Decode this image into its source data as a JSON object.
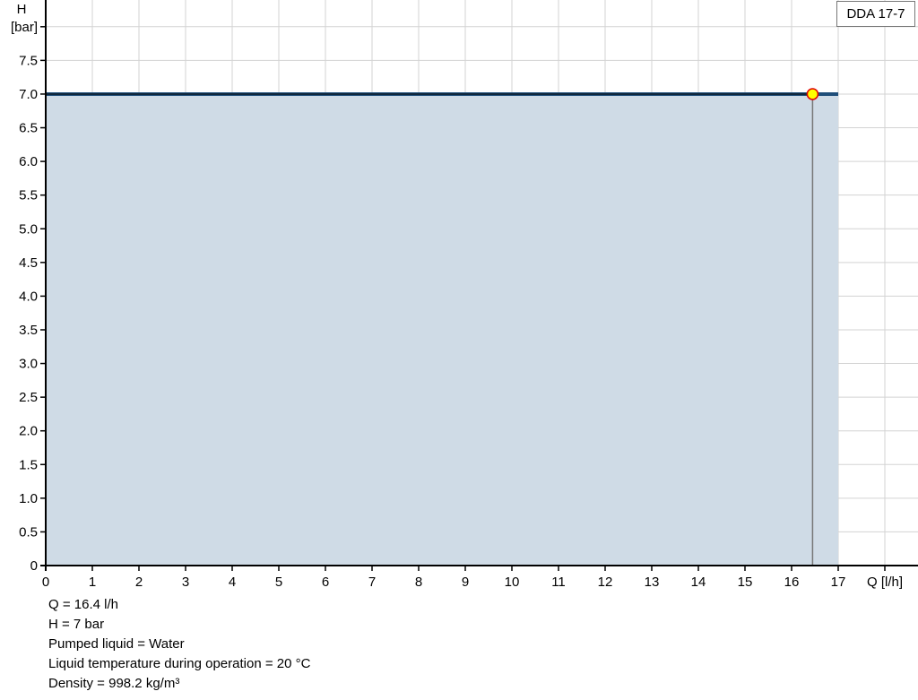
{
  "chart_data": {
    "type": "area",
    "title": "",
    "xlabel": "Q [l/h]",
    "ylabel_top": "H",
    "ylabel_unit": "[bar]",
    "xlim": [
      0,
      18
    ],
    "ylim": [
      0,
      8
    ],
    "x_ticks": [
      0,
      1,
      2,
      3,
      4,
      5,
      6,
      7,
      8,
      9,
      10,
      11,
      12,
      13,
      14,
      15,
      16,
      17
    ],
    "y_ticks": [
      "0",
      "0.5",
      "1.0",
      "1.5",
      "2.0",
      "2.5",
      "3.0",
      "3.5",
      "4.0",
      "4.5",
      "5.0",
      "5.5",
      "6.0",
      "6.5",
      "7.0",
      "7.5"
    ],
    "grid": true,
    "legend": {
      "label": "DDA 17-7",
      "placement": "top-right"
    },
    "series": [
      {
        "name": "DDA 17-7",
        "x": [
          0,
          17
        ],
        "y": [
          7,
          7
        ],
        "color": "#1f4e79",
        "fill": "#cfdbe6"
      }
    ],
    "operating_point": {
      "x": 16.45,
      "y": 7,
      "fill": "#ffff00",
      "stroke": "#e00000"
    }
  },
  "info": [
    "Q = 16.4 l/h",
    "H = 7 bar",
    "Pumped liquid = Water",
    "Liquid temperature during operation = 20 °C",
    "Density = 998.2 kg/m³"
  ]
}
